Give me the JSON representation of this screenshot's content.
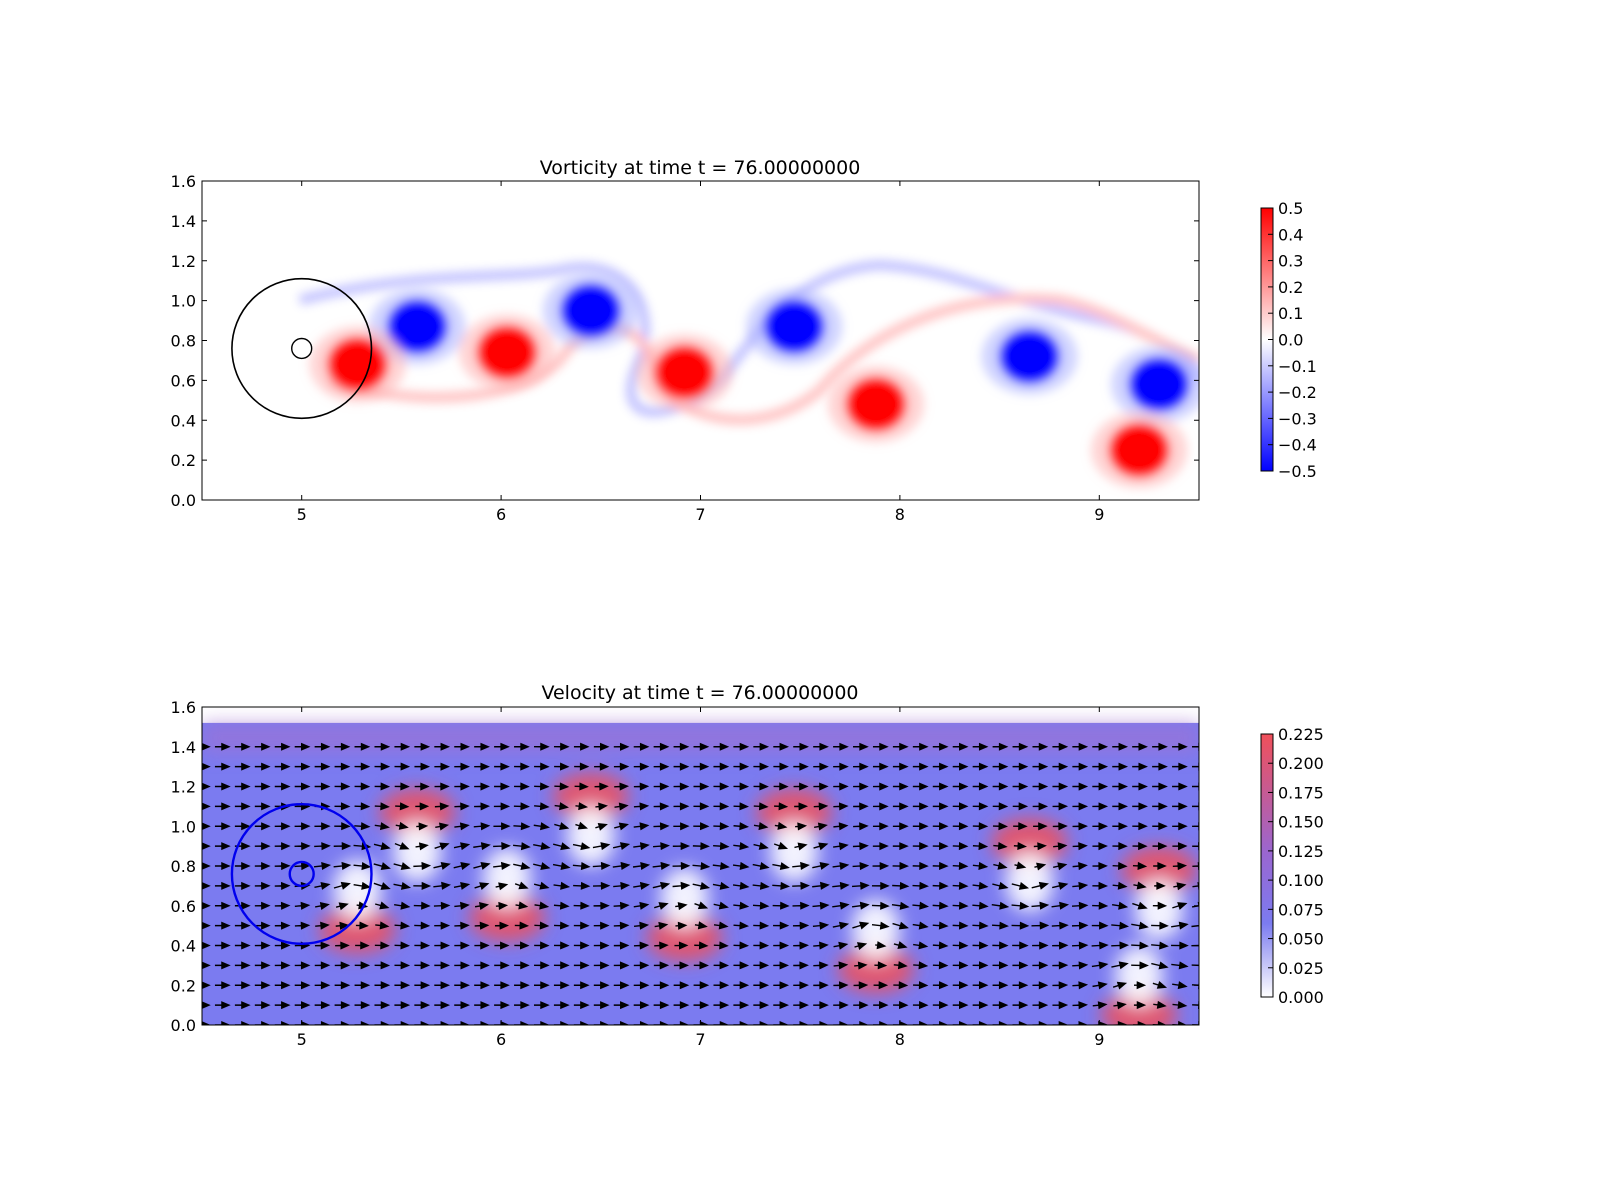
{
  "figure": {
    "background": "#ffffff"
  },
  "chart_data": [
    {
      "type": "heatmap",
      "title": "Vorticity at time t =     76.00000000",
      "xlim": [
        4.5,
        9.5
      ],
      "ylim": [
        0.0,
        1.6
      ],
      "xticks": [
        "5",
        "6",
        "7",
        "8",
        "9"
      ],
      "yticks": [
        "0.0",
        "0.2",
        "0.4",
        "0.6",
        "0.8",
        "1.0",
        "1.2",
        "1.4",
        "1.6"
      ],
      "colormap": "bwr",
      "colors": {
        "negative": "#0000ff",
        "zero": "#ffffff",
        "positive": "#ff0000"
      },
      "colorbar": {
        "range": [
          -0.5,
          0.5
        ],
        "ticks": [
          "0.5",
          "0.4",
          "0.3",
          "0.2",
          "0.1",
          "0.0",
          "−0.1",
          "−0.2",
          "−0.3",
          "−0.4",
          "−0.5"
        ]
      },
      "vortices": [
        {
          "x": 5.58,
          "y": 0.87,
          "strength": -0.5
        },
        {
          "x": 5.28,
          "y": 0.68,
          "strength": 0.5
        },
        {
          "x": 6.03,
          "y": 0.74,
          "strength": 0.5
        },
        {
          "x": 6.45,
          "y": 0.95,
          "strength": -0.5
        },
        {
          "x": 6.92,
          "y": 0.64,
          "strength": 0.5
        },
        {
          "x": 7.47,
          "y": 0.87,
          "strength": -0.5
        },
        {
          "x": 7.88,
          "y": 0.48,
          "strength": 0.5
        },
        {
          "x": 8.65,
          "y": 0.72,
          "strength": -0.5
        },
        {
          "x": 9.3,
          "y": 0.58,
          "strength": -0.5
        },
        {
          "x": 9.2,
          "y": 0.25,
          "strength": 0.5
        }
      ],
      "body": {
        "center": [
          5.0,
          0.76
        ],
        "radius": 0.05
      },
      "outer_circle": {
        "center": [
          5.0,
          0.76
        ],
        "radius": 0.35,
        "color": "#000000"
      }
    },
    {
      "type": "heatmap",
      "title": "Velocity at time t =     76.00000000",
      "xlim": [
        4.5,
        9.5
      ],
      "ylim": [
        0.0,
        1.6
      ],
      "xticks": [
        "5",
        "6",
        "7",
        "8",
        "9"
      ],
      "yticks": [
        "0.0",
        "0.2",
        "0.4",
        "0.6",
        "0.8",
        "1.0",
        "1.2",
        "1.4",
        "1.6"
      ],
      "field_top": 1.52,
      "colors": {
        "low": "#ffffff",
        "mid": "#7b7bf0",
        "high": "#f0505a",
        "arrow": "#000000"
      },
      "colorbar": {
        "range": [
          0.0,
          0.225
        ],
        "ticks": [
          "0.225",
          "0.200",
          "0.175",
          "0.150",
          "0.125",
          "0.100",
          "0.075",
          "0.050",
          "0.025",
          "0.000"
        ]
      },
      "body": {
        "center": [
          5.0,
          0.76
        ],
        "radius": 0.06
      },
      "outer_circle": {
        "center": [
          5.0,
          0.76
        ],
        "radius": 0.35,
        "color": "#0000ee"
      }
    }
  ]
}
